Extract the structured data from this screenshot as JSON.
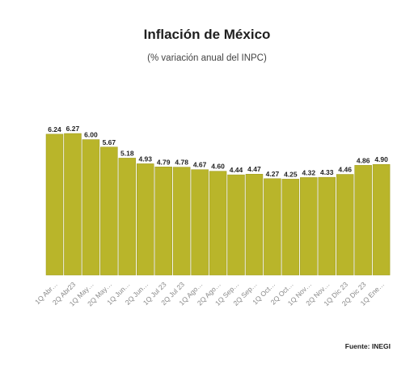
{
  "title": "Inflación de México",
  "subtitle": "(% variación anual del INPC)",
  "source": "Fuente: INEGI",
  "colors": {
    "bar": "#b9b52a",
    "bar_edge": "#9d9a1d",
    "label": "#222222",
    "tick": "#888888"
  },
  "chart_data": {
    "type": "bar",
    "title": "Inflación de México",
    "subtitle": "(% variación anual del INPC)",
    "xlabel": "",
    "ylabel": "",
    "ylim": [
      0,
      6.8
    ],
    "grid": false,
    "categories": [
      "1Q Abr…",
      "2Q Abr23",
      "1Q May…",
      "2Q May…",
      "1Q Jun…",
      "2Q Jun…",
      "1Q Jul 23",
      "2Q Jul 23",
      "1Q Ago…",
      "2Q Ago…",
      "1Q Sep…",
      "2Q Sep…",
      "1Q Oct…",
      "2Q Oct…",
      "1Q Nov…",
      "2Q Nov…",
      "1Q Dic 23",
      "2Q Dic 23",
      "1Q Ene…"
    ],
    "values": [
      6.24,
      6.27,
      6.0,
      5.67,
      5.18,
      4.93,
      4.79,
      4.78,
      4.67,
      4.6,
      4.44,
      4.47,
      4.27,
      4.25,
      4.32,
      4.33,
      4.46,
      4.86,
      4.9
    ],
    "value_labels": [
      "6.24",
      "6.27",
      "6.00",
      "5.67",
      "5.18",
      "4.93",
      "4.79",
      "4.78",
      "4.67",
      "4.60",
      "4.44",
      "4.47",
      "4.27",
      "4.25",
      "4.32",
      "4.33",
      "4.46",
      "4.86",
      "4.90"
    ]
  }
}
